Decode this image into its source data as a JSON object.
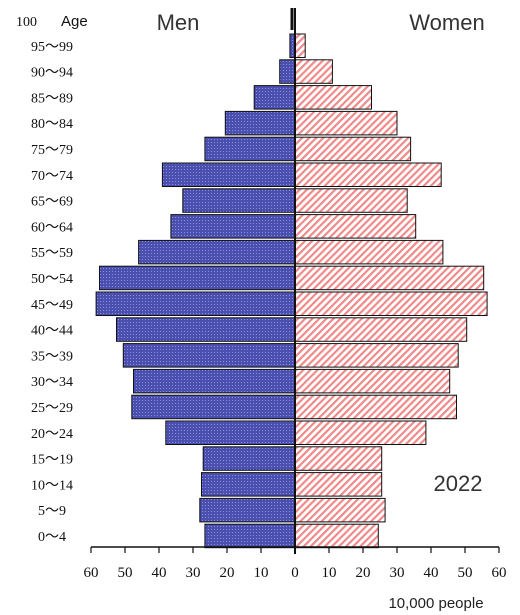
{
  "chart_data": {
    "type": "bar",
    "orientation": "horizontal",
    "title": "",
    "header_left": "Men",
    "header_right": "Women",
    "age_axis_label": "Age",
    "age_top_label": "100",
    "year_label": "2022",
    "unit_label": "10,000 people",
    "xlim": [
      0,
      60
    ],
    "x_ticks": [
      60,
      50,
      40,
      30,
      20,
      10,
      0,
      10,
      20,
      30,
      40,
      50,
      60
    ],
    "categories": [
      "95～99",
      "90～94",
      "85～89",
      "80～84",
      "75～79",
      "70～74",
      "65～69",
      "60～64",
      "55～59",
      "50～54",
      "45～49",
      "40～44",
      "35～39",
      "30～34",
      "25～29",
      "20～24",
      "15～19",
      "10～14",
      "5～9",
      "0～4"
    ],
    "series": [
      {
        "name": "Men",
        "color": "#4a4fb0",
        "values": [
          1.5,
          4.5,
          12,
          20.5,
          26.5,
          39,
          33,
          36.5,
          46,
          57.5,
          58.5,
          52.5,
          50.5,
          47.5,
          48,
          38,
          27,
          27.5,
          28,
          26.5
        ]
      },
      {
        "name": "Women",
        "color": "#f4a8a8",
        "values": [
          3,
          11,
          22.5,
          30,
          34,
          43,
          33,
          35.5,
          43.5,
          55.5,
          56.5,
          50.5,
          48,
          45.5,
          47.5,
          38.5,
          25.5,
          25.5,
          26.5,
          24.5
        ]
      }
    ],
    "grid": false,
    "legend": "none"
  }
}
